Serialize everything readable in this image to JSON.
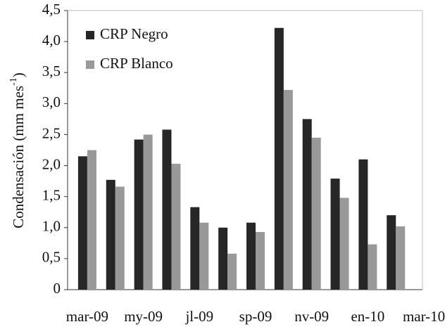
{
  "chart_data": {
    "type": "bar",
    "y_label": "Condensación (mm mes",
    "y_label_sup": "-1",
    "y_label_end": ")",
    "categories": [
      "mar-09",
      null,
      "my-09",
      null,
      "jl-09",
      null,
      "sp-09",
      null,
      "nv-09",
      null,
      "en-10",
      null,
      "mar-10"
    ],
    "series": [
      {
        "name": "CRP Negro",
        "color": "#262626",
        "values": [
          2.15,
          1.77,
          2.42,
          2.58,
          1.33,
          1.0,
          1.08,
          4.22,
          2.75,
          1.79,
          2.1,
          1.2,
          null
        ]
      },
      {
        "name": "CRP Blanco",
        "color": "#999999",
        "values": [
          2.25,
          1.66,
          2.5,
          2.03,
          1.08,
          0.58,
          0.93,
          3.22,
          2.45,
          1.48,
          0.73,
          1.02,
          null
        ]
      }
    ],
    "ylim": [
      0,
      4.5
    ],
    "yticks": [
      0,
      {
        "value": 0.5,
        "label": "0,5"
      },
      {
        "value": 1,
        "label": "1,0"
      },
      {
        "value": 1.5,
        "label": "1,5"
      },
      {
        "value": 2,
        "label": "2,0"
      },
      {
        "value": 2.5,
        "label": "2,5"
      },
      {
        "value": 3,
        "label": "3,0"
      },
      {
        "value": 3.5,
        "label": "3,5"
      },
      {
        "value": 4,
        "label": "4,0"
      },
      {
        "value": 4.5,
        "label": "4,5"
      }
    ],
    "legend": "top-left",
    "grid": false
  }
}
